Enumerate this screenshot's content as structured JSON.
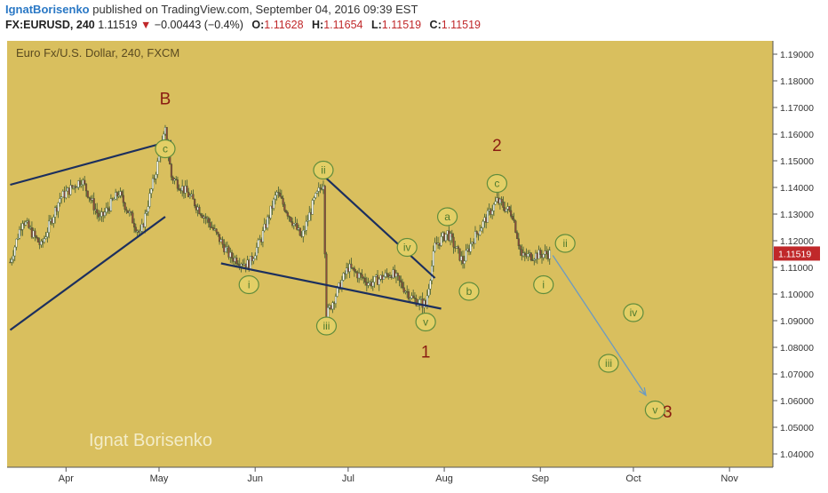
{
  "header": {
    "author": "IgnatBorisenko",
    "published": " published on TradingView.com, September 04, 2016 09:39 EST",
    "symbol": "FX:EURUSD, 240",
    "last": "1.11519",
    "change_arrow": "▼",
    "change": "−0.00443 (−0.4%)",
    "o_label": "O:",
    "o": "1.11628",
    "h_label": "H:",
    "h": "1.11654",
    "l_label": "L:",
    "l": "1.11519",
    "c_label": "C:",
    "c": "1.11519"
  },
  "colors": {
    "background": "#d9bf5e",
    "trendline": "#1c2f5e",
    "wave_label_fill": "#e3cf66",
    "wave_label_stroke": "#5f8c3c",
    "wave_label_text": "#4f7a2e",
    "major_label": "#8a1c12",
    "projection": "#6b9ac2",
    "price_tag": "#c0282a"
  },
  "watermark": "Ignat Borisenko",
  "chart_data": {
    "type": "candlestick",
    "title": "Euro Fx/U.S. Dollar, 240, FXCM",
    "ylim": [
      1.035,
      1.195
    ],
    "yticks": [
      "1.19000",
      "1.18000",
      "1.17000",
      "1.16000",
      "1.15000",
      "1.14000",
      "1.13000",
      "1.12000",
      "1.11000",
      "1.10000",
      "1.09000",
      "1.08000",
      "1.07000",
      "1.06000",
      "1.05000",
      "1.04000"
    ],
    "xticks": [
      "Apr",
      "May",
      "Jun",
      "Jul",
      "Aug",
      "Sep",
      "Oct",
      "Nov"
    ],
    "last_price_label": "1.11519",
    "path_points": [
      [
        "Mar 14",
        1.112
      ],
      [
        "Mar 18",
        1.128
      ],
      [
        "Mar 24",
        1.118
      ],
      [
        "Mar 30",
        1.136
      ],
      [
        "Apr 6",
        1.143
      ],
      [
        "Apr 12",
        1.128
      ],
      [
        "Apr 18",
        1.138
      ],
      [
        "Apr 25",
        1.122
      ],
      [
        "May 3",
        1.161
      ],
      [
        "May 5",
        1.144
      ],
      [
        "May 10",
        1.138
      ],
      [
        "May 17",
        1.127
      ],
      [
        "May 24",
        1.114
      ],
      [
        "May 30",
        1.111
      ],
      [
        "Jun 3",
        1.121
      ],
      [
        "Jun 8",
        1.138
      ],
      [
        "Jun 16",
        1.121
      ],
      [
        "Jun 20",
        1.135
      ],
      [
        "Jun 23",
        1.142
      ],
      [
        "Jun 24",
        1.092
      ],
      [
        "Jul 1",
        1.11
      ],
      [
        "Jul 8",
        1.104
      ],
      [
        "Jul 15",
        1.108
      ],
      [
        "Jul 22",
        1.098
      ],
      [
        "Jul 26",
        1.096
      ],
      [
        "Jul 29",
        1.118
      ],
      [
        "Aug 2",
        1.123
      ],
      [
        "Aug 7",
        1.112
      ],
      [
        "Aug 10",
        1.12
      ],
      [
        "Aug 18",
        1.135
      ],
      [
        "Aug 23",
        1.13
      ],
      [
        "Aug 26",
        1.114
      ],
      [
        "Sep 2",
        1.115
      ],
      [
        "Sep 4",
        1.11519
      ]
    ],
    "wave_labels": [
      {
        "text": "c",
        "date": "May 3",
        "price": 1.1545
      },
      {
        "text": "ii",
        "date": "Jun 23",
        "price": 1.1465
      },
      {
        "text": "i",
        "date": "May 30",
        "price": 1.1035
      },
      {
        "text": "iii",
        "date": "Jun 24",
        "price": 1.088
      },
      {
        "text": "iv",
        "date": "Jul 20",
        "price": 1.1175
      },
      {
        "text": "v",
        "date": "Jul 26",
        "price": 1.0895
      },
      {
        "text": "a",
        "date": "Aug 2",
        "price": 1.129
      },
      {
        "text": "b",
        "date": "Aug 9",
        "price": 1.101
      },
      {
        "text": "c",
        "date": "Aug 18",
        "price": 1.1415
      },
      {
        "text": "i",
        "date": "Sep 2",
        "price": 1.1035
      },
      {
        "text": "ii",
        "date": "Sep 9",
        "price": 1.119
      },
      {
        "text": "iv",
        "date": "Oct 1",
        "price": 1.093
      },
      {
        "text": "iii",
        "date": "Sep 23",
        "price": 1.074
      },
      {
        "text": "v",
        "date": "Oct 8",
        "price": 1.0565
      }
    ],
    "major_labels": [
      {
        "text": "B",
        "date": "May 3",
        "price": 1.1735
      },
      {
        "text": "2",
        "date": "Aug 18",
        "price": 1.156
      },
      {
        "text": "1",
        "date": "Jul 26",
        "price": 1.0785
      },
      {
        "text": "3",
        "date": "Oct 12",
        "price": 1.056
      }
    ],
    "trendlines": [
      {
        "from": [
          "Mar 14",
          1.141
        ],
        "to": [
          "May 5",
          1.1575
        ]
      },
      {
        "from": [
          "Mar 14",
          1.0865
        ],
        "to": [
          "May 3",
          1.129
        ]
      },
      {
        "from": [
          "May 21",
          1.1115
        ],
        "to": [
          "Jul 31",
          1.0945
        ]
      },
      {
        "from": [
          "Jun 22",
          1.1455
        ],
        "to": [
          "Jul 29",
          1.106
        ]
      }
    ],
    "projection": {
      "from": [
        "Sep 5",
        1.1145
      ],
      "to": [
        "Oct 5",
        1.062
      ]
    }
  }
}
